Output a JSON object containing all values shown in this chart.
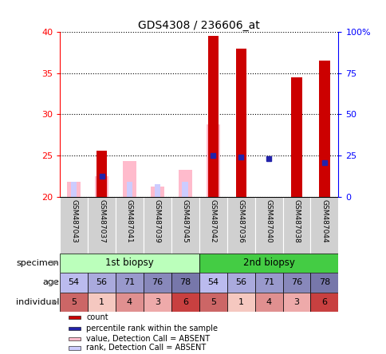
{
  "title": "GDS4308 / 236606_at",
  "samples": [
    "GSM487043",
    "GSM487037",
    "GSM487041",
    "GSM487039",
    "GSM487045",
    "GSM487042",
    "GSM487036",
    "GSM487040",
    "GSM487038",
    "GSM487044"
  ],
  "count_values": [
    0,
    25.6,
    0,
    0,
    0,
    39.5,
    38.0,
    0,
    34.5,
    36.5
  ],
  "percentile_rank": [
    0,
    22.5,
    0,
    0,
    0,
    25.0,
    24.8,
    24.6,
    0,
    24.1
  ],
  "value_absent": [
    21.8,
    22.5,
    24.3,
    21.2,
    23.2,
    28.8,
    0,
    0,
    0,
    0
  ],
  "rank_absent": [
    21.8,
    0,
    21.8,
    21.5,
    21.8,
    22.1,
    0,
    0,
    0,
    0
  ],
  "ylim": [
    20,
    40
  ],
  "yticks": [
    20,
    25,
    30,
    35,
    40
  ],
  "right_yticks": [
    0,
    25,
    50,
    75,
    100
  ],
  "right_ylabels": [
    "0",
    "25",
    "50",
    "75",
    "100%"
  ],
  "age_values": [
    54,
    56,
    71,
    76,
    78,
    54,
    56,
    71,
    76,
    78
  ],
  "individual_values": [
    5,
    1,
    4,
    3,
    6,
    5,
    1,
    4,
    3,
    6
  ],
  "age_color_map": {
    "54": "#bbbbee",
    "56": "#aaaadd",
    "71": "#9999cc",
    "76": "#8888bb",
    "78": "#7777aa"
  },
  "individual_color_map": {
    "1": "#f5c8c0",
    "3": "#eeaaaa",
    "4": "#e09090",
    "5": "#cc6666",
    "6": "#c84040"
  },
  "bar_color_red": "#cc0000",
  "bar_color_blue": "#2222aa",
  "bar_color_pink": "#ffbbcc",
  "bar_color_lavender": "#ccccff",
  "specimen1_color": "#bbffbb",
  "specimen2_color": "#44cc44",
  "legend_items": [
    "count",
    "percentile rank within the sample",
    "value, Detection Call = ABSENT",
    "rank, Detection Call = ABSENT"
  ],
  "legend_colors": [
    "#cc0000",
    "#2222aa",
    "#ffbbcc",
    "#ccccff"
  ]
}
